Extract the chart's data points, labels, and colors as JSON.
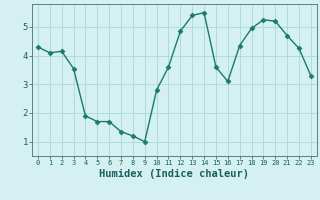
{
  "x": [
    0,
    1,
    2,
    3,
    4,
    5,
    6,
    7,
    8,
    9,
    10,
    11,
    12,
    13,
    14,
    15,
    16,
    17,
    18,
    19,
    20,
    21,
    22,
    23
  ],
  "y": [
    4.3,
    4.1,
    4.15,
    3.55,
    1.9,
    1.7,
    1.7,
    1.35,
    1.2,
    1.0,
    2.8,
    3.6,
    4.85,
    5.4,
    5.5,
    3.6,
    3.1,
    4.35,
    4.95,
    5.25,
    5.2,
    4.7,
    4.25,
    3.3
  ],
  "line_color": "#1a7a6e",
  "marker": "D",
  "markersize": 2.5,
  "bg_color": "#d4f0f0",
  "grid_color": "#a8d8d8",
  "xlabel": "Humidex (Indice chaleur)",
  "ylim": [
    0.5,
    5.8
  ],
  "xlim": [
    -0.5,
    23.5
  ],
  "yticks": [
    1,
    2,
    3,
    4,
    5
  ],
  "xticks": [
    0,
    1,
    2,
    3,
    4,
    5,
    6,
    7,
    8,
    9,
    10,
    11,
    12,
    13,
    14,
    15,
    16,
    17,
    18,
    19,
    20,
    21,
    22,
    23
  ],
  "tick_color": "#1a5f5f",
  "axis_color": "#5a8080",
  "linewidth": 1.0,
  "xlabel_fontsize": 7.5,
  "xtick_fontsize": 5.0,
  "ytick_fontsize": 6.5
}
